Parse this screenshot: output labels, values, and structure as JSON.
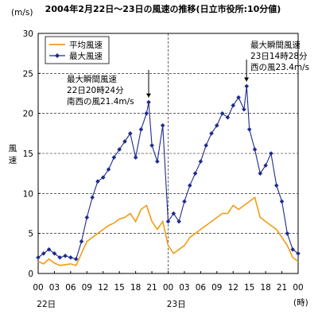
{
  "chart_data": {
    "type": "line",
    "title": "2004年2月22日〜23日の風速の推移(日立市役所:10分値)",
    "ylabel_unit": "(m/s)",
    "ylabel": "風速",
    "xlabel_unit": "(時)",
    "ylim": [
      0,
      30
    ],
    "yticks": [
      "0",
      "5",
      "10",
      "15",
      "20",
      "25",
      "30"
    ],
    "xlim_hours": [
      0,
      48
    ],
    "xticks": [
      "00",
      "03",
      "06",
      "09",
      "12",
      "15",
      "18",
      "21",
      "00",
      "03",
      "06",
      "09",
      "12",
      "15",
      "18",
      "21",
      "00"
    ],
    "date_labels": [
      "22日",
      "23日"
    ],
    "grid": "horizontal-dashed",
    "legend_position": "top-left",
    "series": [
      {
        "name": "平均風速",
        "color": "#F39C12",
        "marker": "none",
        "x": [
          0,
          1,
          2,
          3,
          4,
          5,
          6,
          7,
          8,
          9,
          10,
          11,
          12,
          13,
          14,
          15,
          16,
          17,
          18,
          19,
          20,
          21,
          22,
          23,
          24,
          25,
          26,
          27,
          28,
          29,
          30,
          31,
          32,
          33,
          34,
          35,
          36,
          37,
          38,
          39,
          40,
          41,
          42,
          43,
          44,
          45,
          46,
          47,
          48
        ],
        "y": [
          1.5,
          1.2,
          1.8,
          1.3,
          1.0,
          1.1,
          1.2,
          1.0,
          2.5,
          4.0,
          4.5,
          5.0,
          5.5,
          6.0,
          6.3,
          6.8,
          7.0,
          7.5,
          6.5,
          8.0,
          8.5,
          6.5,
          5.5,
          6.5,
          3.5,
          2.5,
          3.0,
          3.5,
          4.5,
          5.0,
          5.5,
          6.0,
          6.5,
          7.0,
          7.5,
          7.5,
          8.5,
          8.0,
          8.5,
          9.0,
          9.5,
          7.0,
          6.5,
          6.0,
          5.5,
          4.5,
          3.5,
          2.0,
          1.5
        ]
      },
      {
        "name": "最大風速",
        "color": "#1F2A8C",
        "marker": "diamond",
        "x": [
          0,
          1,
          2,
          3,
          4,
          5,
          6,
          7,
          8,
          9,
          10,
          11,
          12,
          13,
          14,
          15,
          16,
          17,
          18,
          19,
          20,
          20.4,
          21,
          22,
          23,
          24,
          25,
          26,
          27,
          28,
          29,
          30,
          31,
          32,
          33,
          34,
          35,
          36,
          37,
          38,
          38.5,
          39,
          40,
          41,
          42,
          43,
          44,
          45,
          46,
          47,
          48
        ],
        "y": [
          2.0,
          2.5,
          3.0,
          2.5,
          2.0,
          2.2,
          2.0,
          1.8,
          4.0,
          7.0,
          9.5,
          11.5,
          12.0,
          13.0,
          14.5,
          15.5,
          16.5,
          17.5,
          14.5,
          18.0,
          20.0,
          21.4,
          16.0,
          14.0,
          18.5,
          6.5,
          7.5,
          6.5,
          9.0,
          11.0,
          12.5,
          14.0,
          16.0,
          17.5,
          18.5,
          20.0,
          19.5,
          21.0,
          22.0,
          20.5,
          23.4,
          18.0,
          15.5,
          12.5,
          13.5,
          15.0,
          11.0,
          9.0,
          5.0,
          3.0,
          2.5
        ]
      }
    ],
    "annotations": [
      {
        "lines": [
          "最大瞬間風速",
          "22日20時24分",
          "南西の風21.4m/s"
        ],
        "x_hours": 20.4,
        "y": 21.4
      },
      {
        "lines": [
          "最大瞬間風速",
          "23日14時28分",
          "西の風23.4m/s"
        ],
        "x_hours": 38.47,
        "y": 23.4
      }
    ]
  }
}
